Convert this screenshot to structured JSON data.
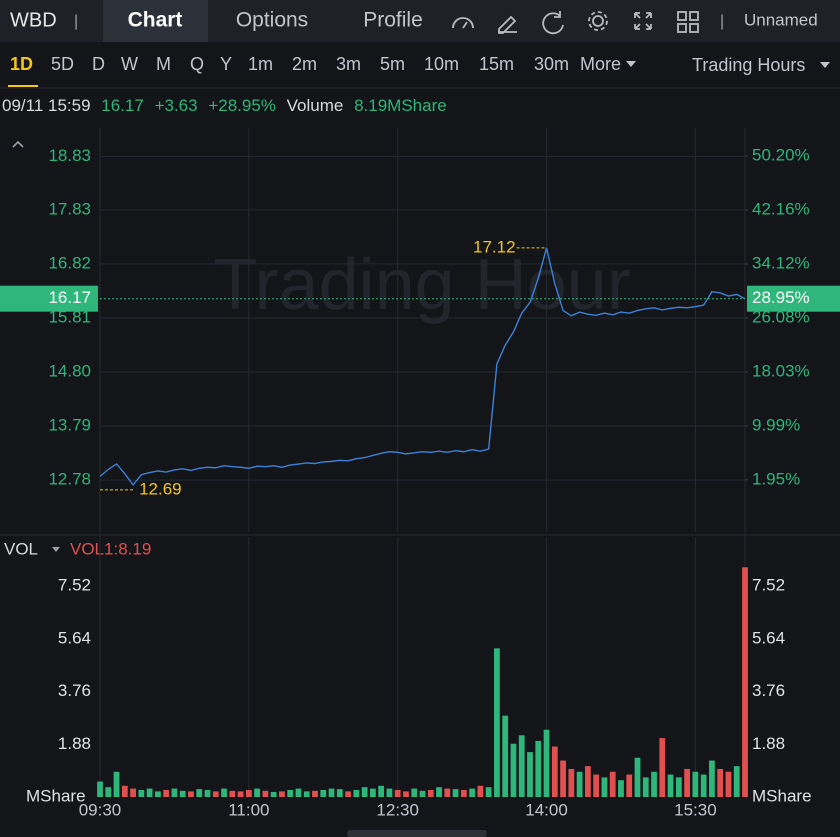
{
  "header": {
    "symbol": "WBD",
    "tabs": [
      "Chart",
      "Options",
      "Profile"
    ],
    "layout_name": "Unnamed"
  },
  "toolbar": {
    "periods": [
      "1D",
      "5D",
      "D",
      "W",
      "M",
      "Q",
      "Y",
      "1m",
      "2m",
      "3m",
      "5m",
      "10m",
      "15m",
      "30m",
      "More"
    ],
    "session": "Trading Hours"
  },
  "chart_data": {
    "type": "line",
    "info": {
      "time": "09/11 15:59",
      "price": "16.17",
      "change": "+3.63",
      "change_pct": "+28.95%",
      "volume_title": "Volume",
      "volume": "8.19MShare"
    },
    "watermark": "Trading Hour",
    "x": [
      "09:30",
      "09:35",
      "09:40",
      "09:45",
      "09:50",
      "09:55",
      "10:00",
      "10:05",
      "10:10",
      "10:15",
      "10:20",
      "10:25",
      "10:30",
      "10:35",
      "10:40",
      "10:45",
      "10:50",
      "10:55",
      "11:00",
      "11:05",
      "11:10",
      "11:15",
      "11:20",
      "11:25",
      "11:30",
      "11:35",
      "11:40",
      "11:45",
      "11:50",
      "11:55",
      "12:00",
      "12:05",
      "12:10",
      "12:15",
      "12:20",
      "12:25",
      "12:30",
      "12:35",
      "12:40",
      "12:45",
      "12:50",
      "12:55",
      "13:00",
      "13:05",
      "13:10",
      "13:15",
      "13:20",
      "13:25",
      "13:30",
      "13:35",
      "13:40",
      "13:45",
      "13:50",
      "13:55",
      "14:00",
      "14:05",
      "14:10",
      "14:15",
      "14:20",
      "14:25",
      "14:30",
      "14:35",
      "14:40",
      "14:45",
      "14:50",
      "14:55",
      "15:00",
      "15:05",
      "15:10",
      "15:15",
      "15:20",
      "15:25",
      "15:30",
      "15:35",
      "15:40",
      "15:45",
      "15:50",
      "15:55",
      "16:00"
    ],
    "xticks": [
      "09:30",
      "11:00",
      "12:30",
      "14:00",
      "15:30"
    ],
    "series": [
      {
        "name": "Price",
        "color": "#3b82d9",
        "values": [
          12.85,
          12.98,
          13.08,
          12.9,
          12.69,
          12.88,
          12.92,
          12.95,
          12.93,
          12.97,
          12.99,
          12.96,
          13.0,
          13.02,
          13.01,
          13.05,
          13.03,
          13.02,
          13.0,
          13.04,
          13.03,
          13.05,
          13.02,
          13.06,
          13.08,
          13.1,
          13.09,
          13.12,
          13.13,
          13.15,
          13.14,
          13.18,
          13.2,
          13.24,
          13.28,
          13.31,
          13.3,
          13.27,
          13.29,
          13.31,
          13.3,
          13.32,
          13.3,
          13.33,
          13.31,
          13.35,
          13.32,
          13.36,
          14.95,
          15.3,
          15.55,
          15.9,
          16.1,
          16.55,
          17.12,
          16.45,
          15.95,
          15.85,
          15.92,
          15.88,
          15.86,
          15.9,
          15.87,
          15.92,
          15.9,
          15.95,
          15.98,
          16.0,
          15.96,
          15.99,
          16.01,
          16.0,
          16.02,
          16.05,
          16.3,
          16.28,
          16.22,
          16.25,
          16.17
        ]
      }
    ],
    "ylim": [
      11.81,
      19.36
    ],
    "yticks": [
      18.83,
      17.83,
      16.82,
      15.81,
      {
        "value": 14.8,
        "label": "14.80"
      },
      13.79,
      12.78
    ],
    "y2lim": [
      -5.82,
      54.39
    ],
    "y2ticks": [
      {
        "value": 50.2,
        "label": "50.20%"
      },
      {
        "value": 42.16,
        "label": "42.16%"
      },
      {
        "value": 34.12,
        "label": "34.12%"
      },
      {
        "value": 26.08,
        "label": "26.08%"
      },
      {
        "value": 18.03,
        "label": "18.03%"
      },
      {
        "value": 9.99,
        "label": "9.99%"
      },
      {
        "value": 1.95,
        "label": "1.95%"
      }
    ],
    "last_price": 16.17,
    "last_pct": {
      "value": 28.95,
      "label": "28.95%"
    },
    "annotations": [
      {
        "x": "14:00",
        "value": 17.12
      },
      {
        "x": "09:50",
        "value": 12.69
      }
    ],
    "grid": true,
    "volume": {
      "title": "VOL",
      "label": "VOL1:8.19",
      "unit": "MShare",
      "up_color": "#2fb67a",
      "down_color": "#e0504e",
      "values": [
        0.55,
        0.35,
        0.9,
        0.4,
        0.3,
        0.25,
        0.3,
        0.2,
        0.25,
        0.3,
        0.22,
        0.2,
        0.28,
        0.25,
        0.2,
        0.3,
        0.22,
        0.2,
        0.25,
        0.3,
        0.22,
        0.18,
        0.2,
        0.25,
        0.3,
        0.2,
        0.22,
        0.25,
        0.3,
        0.28,
        0.2,
        0.25,
        0.35,
        0.3,
        0.4,
        0.3,
        0.25,
        0.2,
        0.3,
        0.22,
        0.25,
        0.35,
        0.3,
        0.28,
        0.25,
        0.3,
        0.4,
        0.35,
        5.3,
        2.9,
        1.9,
        2.2,
        1.6,
        2.0,
        2.4,
        1.8,
        1.3,
        1.0,
        0.9,
        1.1,
        0.8,
        0.7,
        0.9,
        0.6,
        0.8,
        1.4,
        0.7,
        0.9,
        2.1,
        0.8,
        0.7,
        1.0,
        0.9,
        0.8,
        1.3,
        1.0,
        0.9,
        1.1,
        8.19
      ],
      "ylim": [
        0,
        8.45
      ],
      "yticks": [
        7.52,
        5.64,
        3.76,
        1.88
      ]
    }
  }
}
